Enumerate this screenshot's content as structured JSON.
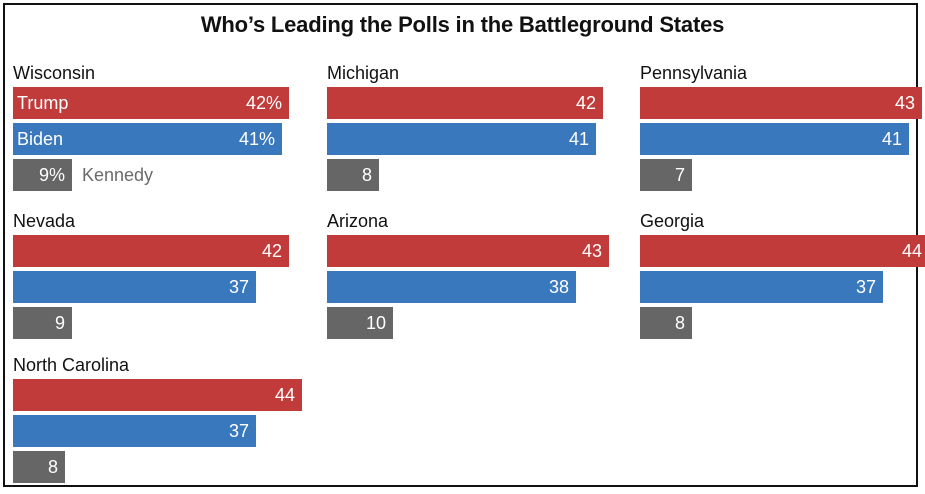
{
  "title": "Who’s Leading the Polls in the Battleground States",
  "colors": {
    "trump": "#c23b3b",
    "biden": "#3a78bd",
    "kennedy": "#666666"
  },
  "chart_data": {
    "type": "bar",
    "title": "Who’s Leading the Polls in the Battleground States",
    "orientation": "horizontal",
    "unit": "%",
    "xlim": [
      0,
      45
    ],
    "grid": false,
    "legend": "inline-first-panel",
    "series_labels": [
      "Trump",
      "Biden",
      "Kennedy"
    ],
    "panels": [
      {
        "state": "Wisconsin",
        "values": [
          {
            "candidate": "trump",
            "label": "Trump",
            "value": 42,
            "text": "42%"
          },
          {
            "candidate": "biden",
            "label": "Biden",
            "value": 41,
            "text": "41%"
          },
          {
            "candidate": "kennedy",
            "label": "Kennedy",
            "value": 9,
            "text": "9%"
          }
        ]
      },
      {
        "state": "Michigan",
        "values": [
          {
            "candidate": "trump",
            "value": 42,
            "text": "42"
          },
          {
            "candidate": "biden",
            "value": 41,
            "text": "41"
          },
          {
            "candidate": "kennedy",
            "value": 8,
            "text": "8"
          }
        ]
      },
      {
        "state": "Pennsylvania",
        "values": [
          {
            "candidate": "trump",
            "value": 43,
            "text": "43"
          },
          {
            "candidate": "biden",
            "value": 41,
            "text": "41"
          },
          {
            "candidate": "kennedy",
            "value": 7,
            "text": "7"
          }
        ]
      },
      {
        "state": "Nevada",
        "values": [
          {
            "candidate": "trump",
            "value": 42,
            "text": "42"
          },
          {
            "candidate": "biden",
            "value": 37,
            "text": "37"
          },
          {
            "candidate": "kennedy",
            "value": 9,
            "text": "9"
          }
        ]
      },
      {
        "state": "Arizona",
        "values": [
          {
            "candidate": "trump",
            "value": 43,
            "text": "43"
          },
          {
            "candidate": "biden",
            "value": 38,
            "text": "38"
          },
          {
            "candidate": "kennedy",
            "value": 10,
            "text": "10"
          }
        ]
      },
      {
        "state": "Georgia",
        "values": [
          {
            "candidate": "trump",
            "value": 44,
            "text": "44"
          },
          {
            "candidate": "biden",
            "value": 37,
            "text": "37"
          },
          {
            "candidate": "kennedy",
            "value": 8,
            "text": "8"
          }
        ]
      },
      {
        "state": "North Carolina",
        "values": [
          {
            "candidate": "trump",
            "value": 44,
            "text": "44"
          },
          {
            "candidate": "biden",
            "value": 37,
            "text": "37"
          },
          {
            "candidate": "kennedy",
            "value": 8,
            "text": "8"
          }
        ]
      }
    ]
  }
}
